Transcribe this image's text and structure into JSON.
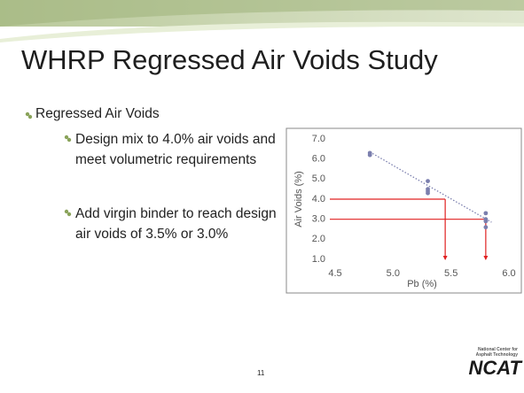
{
  "title": "WHRP Regressed Air Voids Study",
  "bullets": [
    {
      "text": "Regressed Air Voids",
      "sub": [
        "Design mix to 4.0% air voids and meet volumetric requirements",
        "Add virgin binder to reach design air voids of 3.5% or 3.0%"
      ]
    }
  ],
  "page_number": "11",
  "logo": {
    "line1": "National Center for",
    "line2": "Asphalt Technology",
    "name": "NCAT"
  },
  "chart_data": {
    "type": "scatter",
    "x": [
      4.8,
      4.8,
      5.3,
      5.3,
      5.3,
      5.3,
      5.8,
      5.8,
      5.8,
      5.8
    ],
    "y": [
      6.3,
      6.2,
      4.9,
      4.5,
      4.4,
      4.3,
      3.3,
      3.0,
      2.9,
      2.6
    ],
    "color": "#7b7fae",
    "xlabel": "Pb (%)",
    "ylabel": "Air Voids (%)",
    "xlim": [
      4.5,
      6.0
    ],
    "xticks": [
      4.5,
      {
        "value": 5,
        "label": "5.0"
      },
      5.5,
      {
        "value": 6,
        "label": "6.0"
      }
    ],
    "ylim": [
      1,
      7
    ],
    "yticks": [
      {
        "value": 1,
        "label": "1.0"
      },
      {
        "value": 2,
        "label": "2.0"
      },
      {
        "value": 3,
        "label": "3.0"
      },
      {
        "value": 4,
        "label": "4.0"
      },
      {
        "value": 5,
        "label": "5.0"
      },
      {
        "value": 6,
        "label": "6.0"
      },
      {
        "value": 7,
        "label": "7.0"
      }
    ],
    "trendline": {
      "x": [
        4.8,
        5.85
      ],
      "y": [
        6.35,
        2.85
      ],
      "color": "#7b7fae"
    },
    "reference_lines": {
      "color": "#e02020",
      "y": [
        4.0,
        3.0
      ],
      "x": [
        5.45,
        5.8
      ]
    }
  }
}
